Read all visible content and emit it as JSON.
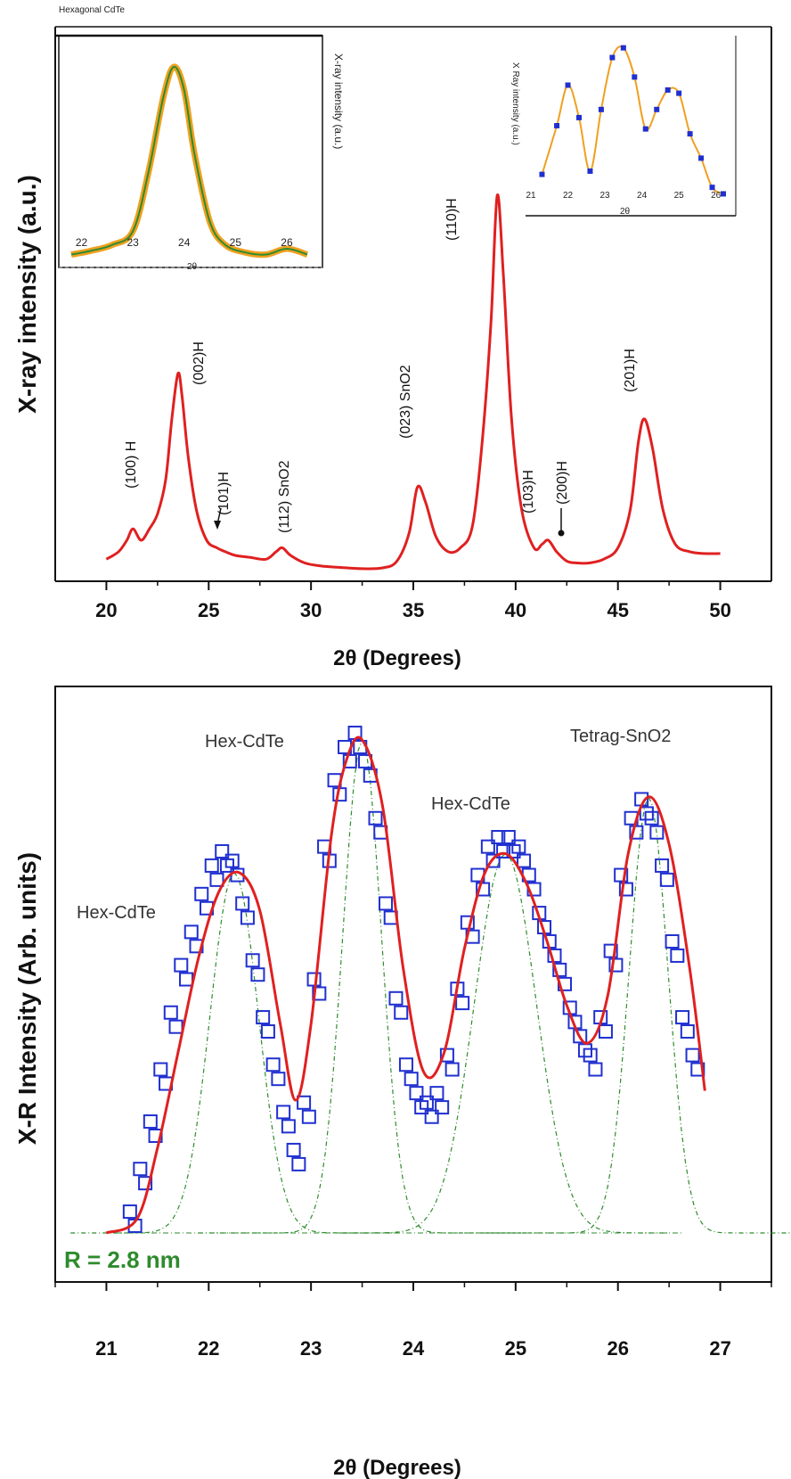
{
  "chart_data": [
    {
      "id": "top",
      "type": "line",
      "header": "Hexagonal CdTe",
      "xlabel": "2θ (Degrees)",
      "ylabel": "X-ray intensity (a.u.)",
      "xlim": [
        17.5,
        52.5
      ],
      "ylim": [
        0,
        100
      ],
      "xticks": [
        20,
        25,
        30,
        35,
        40,
        45,
        50
      ],
      "series": [
        {
          "name": "XRD",
          "color": "#e02020",
          "x": [
            20,
            20.6,
            21,
            21.3,
            21.7,
            22.1,
            22.5,
            22.9,
            23.2,
            23.5,
            23.7,
            24.0,
            24.4,
            24.9,
            25.4,
            25.8,
            26.3,
            27.0,
            27.8,
            28.3,
            28.6,
            29.0,
            29.7,
            30.5,
            31.5,
            32.5,
            33.5,
            34.2,
            34.8,
            35.2,
            35.6,
            36.1,
            36.7,
            37.3,
            37.9,
            38.4,
            38.8,
            39.1,
            39.4,
            39.8,
            40.3,
            40.9,
            41.3,
            41.6,
            42.0,
            42.5,
            43.0,
            43.6,
            44.3,
            45.0,
            45.6,
            46.0,
            46.3,
            46.7,
            47.2,
            47.8,
            48.5,
            49.2,
            50.0
          ],
          "y": [
            3,
            5,
            8,
            11,
            8,
            11,
            15,
            24,
            40,
            52,
            46,
            30,
            16,
            8,
            6,
            5,
            4,
            3.5,
            3,
            5,
            6,
            4,
            2,
            1.2,
            0.8,
            0.5,
            0.7,
            2.5,
            10,
            22,
            18,
            9,
            5,
            6,
            12,
            36,
            66,
            99,
            78,
            40,
            16,
            6,
            7,
            8,
            5,
            2.5,
            2,
            2,
            3,
            6,
            16,
            34,
            40,
            32,
            16,
            7,
            5,
            4.5,
            4.5
          ]
        }
      ],
      "peak_labels": [
        {
          "text": "(100) H",
          "x": 21.3
        },
        {
          "text": "(002)H",
          "x": 23.7
        },
        {
          "text": "(101)H",
          "x": 25.7
        },
        {
          "text": "(112) SnO2",
          "x": 28.5
        },
        {
          "text": "(023) SnO2",
          "x": 35.2
        },
        {
          "text": "(110)H",
          "x": 37.6
        },
        {
          "text": "(103)H",
          "x": 41.5
        },
        {
          "text": "(200)H",
          "x": 43.2
        },
        {
          "text": "(201)H",
          "x": 46.3
        }
      ],
      "insets": [
        {
          "id": "inset-left",
          "type": "line",
          "xlabel": "2θ",
          "ylabel": "X-ray intensity (a.u.)",
          "xticks": [
            22,
            23,
            24,
            25,
            26
          ],
          "xlim": [
            21.8,
            26.4
          ],
          "x": [
            21.8,
            22.2,
            22.6,
            23.0,
            23.3,
            23.6,
            23.8,
            24.0,
            24.2,
            24.5,
            24.8,
            25.2,
            25.6,
            26.0,
            26.4
          ],
          "y": [
            3,
            5,
            8,
            15,
            45,
            85,
            100,
            88,
            55,
            20,
            8,
            4,
            3,
            6,
            3
          ]
        },
        {
          "id": "inset-right",
          "type": "scatter+fit",
          "xlabel": "2θ",
          "ylabel": "X Ray intensity (a.u.)",
          "xticks": [
            21,
            22,
            23,
            24,
            25,
            26
          ],
          "xlim": [
            21,
            26.2
          ],
          "x": [
            21.3,
            21.7,
            22.0,
            22.3,
            22.6,
            22.9,
            23.2,
            23.5,
            23.8,
            24.1,
            24.4,
            24.7,
            25.0,
            25.3,
            25.6,
            25.9,
            26.2
          ],
          "y": [
            20,
            50,
            75,
            55,
            22,
            60,
            92,
            98,
            80,
            48,
            60,
            72,
            70,
            45,
            30,
            12,
            8
          ]
        }
      ]
    },
    {
      "id": "bottom",
      "type": "scatter",
      "xlabel": "2θ (Degrees)",
      "ylabel": "X-R Intensity (Arb. units)",
      "xlim": [
        20.5,
        27.5
      ],
      "ylim": [
        0,
        100
      ],
      "xticks": [
        21,
        22,
        23,
        24,
        25,
        26,
        27
      ],
      "annotation": "R = 2.8 nm",
      "peak_labels": [
        {
          "text": "Hex-CdTe",
          "x": 22.3,
          "y": 75
        },
        {
          "text": "Hex-CdTe",
          "x": 23.5,
          "y": 100
        },
        {
          "text": "Hex-CdTe",
          "x": 24.9,
          "y": 85
        },
        {
          "text": "Tetrag-SnO2",
          "x": 26.3,
          "y": 92
        }
      ],
      "series": [
        {
          "name": "data",
          "marker": "square",
          "color": "#2030d0",
          "x": [
            21.25,
            21.35,
            21.45,
            21.55,
            21.65,
            21.75,
            21.85,
            21.95,
            22.05,
            22.15,
            22.25,
            22.35,
            22.45,
            22.55,
            22.65,
            22.75,
            22.85,
            22.95,
            23.05,
            23.15,
            23.25,
            23.35,
            23.45,
            23.55,
            23.65,
            23.75,
            23.85,
            23.95,
            24.05,
            24.15,
            24.25,
            24.35,
            24.45,
            24.55,
            24.65,
            24.75,
            24.85,
            24.95,
            25.05,
            25.15,
            25.25,
            25.35,
            25.45,
            25.55,
            25.65,
            25.75,
            25.85,
            25.95,
            26.05,
            26.15,
            26.25,
            26.35,
            26.45,
            26.55,
            26.65,
            26.75
          ],
          "y": [
            3,
            12,
            22,
            33,
            45,
            55,
            62,
            70,
            76,
            79,
            77,
            68,
            56,
            44,
            34,
            24,
            16,
            26,
            52,
            80,
            94,
            101,
            104,
            98,
            86,
            68,
            48,
            34,
            28,
            26,
            28,
            36,
            50,
            64,
            74,
            80,
            82,
            82,
            80,
            74,
            66,
            60,
            54,
            46,
            40,
            36,
            44,
            58,
            74,
            86,
            90,
            86,
            76,
            60,
            44,
            36
          ]
        },
        {
          "name": "fit",
          "type": "line",
          "color": "#e02020",
          "x": [
            21.0,
            21.3,
            21.5,
            21.7,
            21.9,
            22.1,
            22.3,
            22.5,
            22.7,
            22.85,
            23.0,
            23.2,
            23.35,
            23.5,
            23.7,
            23.9,
            24.1,
            24.3,
            24.5,
            24.7,
            24.9,
            25.1,
            25.3,
            25.5,
            25.7,
            25.9,
            26.1,
            26.3,
            26.5,
            26.7,
            26.85
          ],
          "y": [
            0,
            3,
            18,
            38,
            58,
            72,
            76,
            68,
            44,
            28,
            44,
            84,
            100,
            104,
            90,
            56,
            34,
            38,
            60,
            76,
            80,
            74,
            62,
            48,
            40,
            50,
            80,
            92,
            82,
            56,
            30
          ]
        }
      ],
      "components": [
        {
          "center": 22.25,
          "height": 76,
          "width": 0.35
        },
        {
          "center": 23.5,
          "height": 104,
          "width": 0.28
        },
        {
          "center": 24.9,
          "height": 80,
          "width": 0.45
        },
        {
          "center": 26.3,
          "height": 92,
          "width": 0.28
        }
      ]
    }
  ]
}
